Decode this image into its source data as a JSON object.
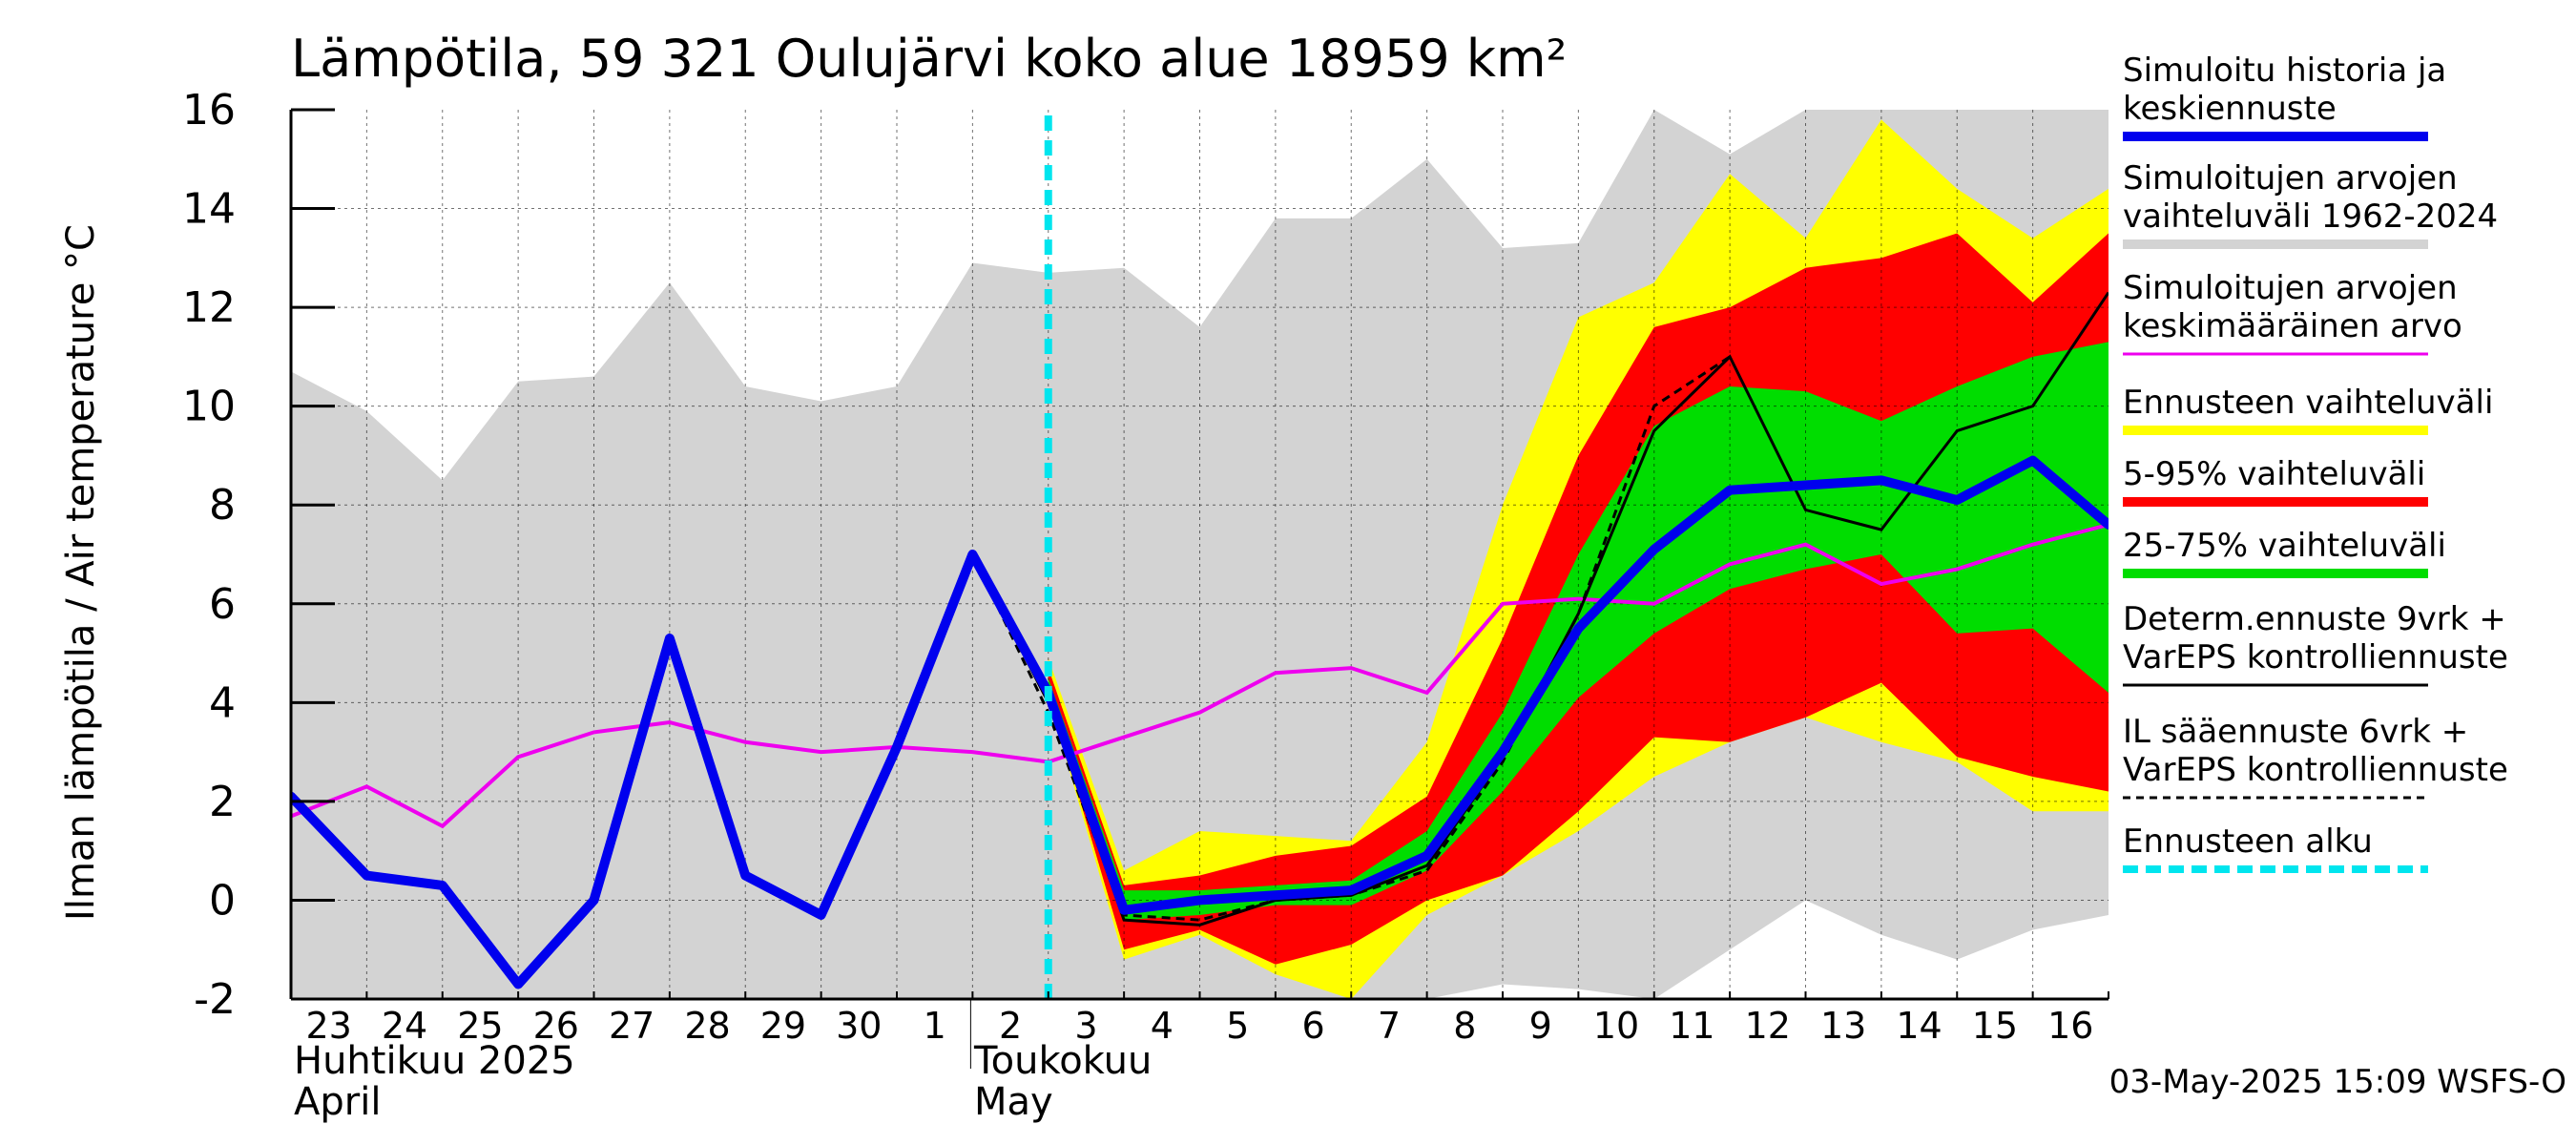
{
  "chart_data": {
    "type": "line",
    "title": "Lämpötila, 59 321 Oulujärvi koko alue 18959 km²",
    "ylabel": "Ilman lämpötila / Air temperature   °C",
    "ylim": [
      -2,
      16
    ],
    "yticks": [
      -2,
      0,
      2,
      4,
      6,
      8,
      10,
      12,
      14,
      16
    ],
    "xlim": [
      0,
      24
    ],
    "x_day_labels": [
      "23",
      "24",
      "25",
      "26",
      "27",
      "28",
      "29",
      "30",
      "1",
      "2",
      "3",
      "4",
      "5",
      "6",
      "7",
      "8",
      "9",
      "10",
      "11",
      "12",
      "13",
      "14",
      "15",
      "16"
    ],
    "month_labels": [
      {
        "fi": "Huhtikuu  2025",
        "en": "April",
        "x": 0
      },
      {
        "fi": "Toukokuu",
        "en": "May",
        "x": 9
      }
    ],
    "timestamp": "03-May-2025 15:09 WSFS-O",
    "forecast_start_x": 10.0,
    "colors": {
      "history_range": "#d3d3d3",
      "forecast_range": "#ffff00",
      "p5_95": "#ff0000",
      "p25_75": "#00dd00",
      "simulated": "#0000ee",
      "mean": "#ee00ee",
      "determ": "#000000",
      "forecast_start": "#00e5ee"
    },
    "legend": [
      {
        "label": [
          "Simuloitu historia ja",
          "keskiennuste"
        ],
        "color": "#0000ee",
        "style": "thick"
      },
      {
        "label": [
          "Simuloitujen arvojen",
          "vaihteluväli 1962-2024"
        ],
        "color": "#d3d3d3",
        "style": "thick"
      },
      {
        "label": [
          "Simuloitujen arvojen",
          "keskimääräinen arvo"
        ],
        "color": "#ee00ee",
        "style": "thin"
      },
      {
        "label": [
          "Ennusteen vaihteluväli"
        ],
        "color": "#ffff00",
        "style": "thick"
      },
      {
        "label": [
          "5-95% vaihteluväli"
        ],
        "color": "#ff0000",
        "style": "thick"
      },
      {
        "label": [
          "25-75% vaihteluväli"
        ],
        "color": "#00dd00",
        "style": "thick"
      },
      {
        "label": [
          "Determ.ennuste 9vrk +",
          "VarEPS kontrolliennuste"
        ],
        "color": "#000000",
        "style": "thin"
      },
      {
        "label": [
          "IL sääennuste 6vrk  +",
          "  VarEPS kontrolliennuste"
        ],
        "color": "#000000",
        "style": "dashed"
      },
      {
        "label": [
          "Ennusteen alku"
        ],
        "color": "#00e5ee",
        "style": "dashed-thick"
      }
    ],
    "series": {
      "history_range": {
        "x": [
          0,
          1,
          2,
          3,
          4,
          5,
          6,
          7,
          8,
          9,
          10,
          11,
          12,
          13,
          14,
          15,
          16,
          17,
          18,
          19,
          20,
          21,
          22,
          23,
          24
        ],
        "upper": [
          10.7,
          9.9,
          8.5,
          10.5,
          10.6,
          12.5,
          10.4,
          10.1,
          10.4,
          12.9,
          12.7,
          12.8,
          11.6,
          13.8,
          13.8,
          15.0,
          13.2,
          13.3,
          16.0,
          15.1,
          16.0,
          16.0,
          16.0,
          16.0,
          16.0
        ],
        "lower": [
          -2,
          -2,
          -2,
          -2,
          -2,
          -2,
          -2,
          -2,
          -2,
          -2,
          -2,
          -2,
          -2,
          -2,
          -2,
          -2,
          -1.7,
          -1.8,
          -2.0,
          -1.0,
          0.0,
          -0.7,
          -1.2,
          -0.6,
          -0.3
        ]
      },
      "forecast_range": {
        "x": [
          10,
          11,
          12,
          13,
          14,
          15,
          16,
          17,
          18,
          19,
          20,
          21,
          22,
          23,
          24
        ],
        "upper": [
          4.9,
          0.6,
          1.4,
          1.3,
          1.2,
          3.2,
          8.0,
          11.8,
          12.5,
          14.7,
          13.4,
          15.8,
          14.4,
          13.4,
          14.4
        ],
        "lower": [
          4.1,
          -1.2,
          -0.7,
          -1.5,
          -2.0,
          -0.3,
          0.5,
          1.4,
          2.5,
          3.2,
          3.7,
          3.2,
          2.8,
          1.8,
          1.8
        ]
      },
      "p5_95": {
        "x": [
          10,
          11,
          12,
          13,
          14,
          15,
          16,
          17,
          18,
          19,
          20,
          21,
          22,
          23,
          24
        ],
        "upper": [
          4.7,
          0.3,
          0.5,
          0.9,
          1.1,
          2.1,
          5.3,
          9.0,
          11.6,
          12.0,
          12.8,
          13.0,
          13.5,
          12.1,
          13.5
        ],
        "lower": [
          4.2,
          -1.0,
          -0.6,
          -1.3,
          -0.9,
          0.0,
          0.5,
          1.8,
          3.3,
          3.2,
          3.7,
          4.4,
          2.9,
          2.5,
          2.2
        ]
      },
      "p25_75": {
        "x": [
          10,
          11,
          12,
          13,
          14,
          15,
          16,
          17,
          18,
          19,
          20,
          21,
          22,
          23,
          24
        ],
        "upper": [
          4.5,
          0.2,
          0.2,
          0.3,
          0.4,
          1.4,
          3.8,
          7.0,
          9.6,
          10.4,
          10.3,
          9.7,
          10.4,
          11.0,
          11.3
        ],
        "lower": [
          4.3,
          -0.4,
          -0.3,
          -0.1,
          -0.1,
          0.6,
          2.2,
          4.1,
          5.4,
          6.3,
          6.7,
          7.0,
          5.4,
          5.5,
          4.2
        ]
      },
      "simulated": {
        "x": [
          0,
          1,
          2,
          3,
          4,
          5,
          6,
          7,
          8,
          9,
          10,
          11,
          12,
          13,
          14,
          15,
          16,
          17,
          18,
          19,
          20,
          21,
          22,
          23,
          24
        ],
        "y": [
          2.1,
          0.5,
          0.3,
          -1.7,
          0.0,
          5.3,
          0.5,
          -0.3,
          3.1,
          7.0,
          4.2,
          -0.2,
          0.0,
          0.1,
          0.2,
          0.9,
          3.0,
          5.5,
          7.1,
          8.3,
          8.4,
          8.5,
          8.1,
          8.9,
          7.6
        ]
      },
      "mean": {
        "x": [
          0,
          1,
          2,
          3,
          4,
          5,
          6,
          7,
          8,
          9,
          10,
          11,
          12,
          13,
          14,
          15,
          16,
          17,
          18,
          19,
          20,
          21,
          22,
          23,
          24
        ],
        "y": [
          1.7,
          2.3,
          1.5,
          2.9,
          3.4,
          3.6,
          3.2,
          3.0,
          3.1,
          3.0,
          2.8,
          3.3,
          3.8,
          4.6,
          4.7,
          4.2,
          6.0,
          6.1,
          6.0,
          6.8,
          7.2,
          6.4,
          6.7,
          7.2,
          7.6
        ]
      },
      "determ": {
        "x": [
          9,
          10,
          11,
          12,
          13,
          14,
          15,
          16,
          17,
          18,
          19,
          20,
          21,
          22,
          23,
          24
        ],
        "y": [
          7.0,
          4.0,
          -0.4,
          -0.5,
          0.0,
          0.1,
          0.7,
          2.9,
          5.8,
          9.5,
          11.0,
          7.9,
          7.5,
          9.5,
          10.0,
          12.3
        ]
      },
      "il_forecast": {
        "x": [
          9,
          10,
          11,
          12,
          13,
          14,
          15,
          16,
          17,
          18,
          19
        ],
        "y": [
          7.0,
          3.8,
          -0.3,
          -0.4,
          0.0,
          0.1,
          0.6,
          2.8,
          5.8,
          10.0,
          11.0
        ]
      }
    }
  }
}
